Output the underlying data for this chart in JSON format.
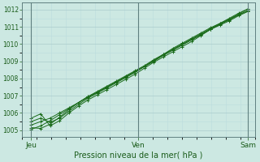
{
  "xlabel": "Pression niveau de la mer( hPa )",
  "xtick_labels": [
    "Jeu",
    "Ven",
    "Sam"
  ],
  "xtick_positions": [
    0.04,
    0.5,
    0.97
  ],
  "ylim": [
    1004.6,
    1012.4
  ],
  "yticks": [
    1005,
    1006,
    1007,
    1008,
    1009,
    1010,
    1011,
    1012
  ],
  "background_color": "#cce8e2",
  "grid_color_major": "#aacccc",
  "grid_color_minor": "#bbdddd",
  "line_color": "#1a6b1a",
  "marker_color": "#1a6b1a",
  "series": [
    [
      1005.3,
      1005.5,
      1005.7,
      1006.0,
      1006.3,
      1006.6,
      1006.9,
      1007.2,
      1007.5,
      1007.8,
      1008.1,
      1008.4,
      1008.7,
      1009.0,
      1009.35,
      1009.65,
      1009.95,
      1010.25,
      1010.55,
      1010.85,
      1011.15,
      1011.4,
      1011.7,
      1011.95
    ],
    [
      1005.05,
      1005.25,
      1005.55,
      1005.9,
      1006.25,
      1006.6,
      1006.95,
      1007.25,
      1007.55,
      1007.85,
      1008.15,
      1008.45,
      1008.75,
      1009.1,
      1009.4,
      1009.7,
      1010.0,
      1010.3,
      1010.6,
      1010.9,
      1011.2,
      1011.5,
      1011.8,
      1012.05
    ],
    [
      1005.15,
      1005.1,
      1005.35,
      1005.75,
      1006.2,
      1006.6,
      1006.95,
      1007.2,
      1007.5,
      1007.8,
      1008.1,
      1008.4,
      1008.7,
      1009.05,
      1009.4,
      1009.75,
      1010.05,
      1010.35,
      1010.65,
      1010.95,
      1011.2,
      1011.45,
      1011.75,
      1012.05
    ],
    [
      1005.5,
      1005.7,
      1005.45,
      1005.7,
      1006.1,
      1006.5,
      1006.85,
      1007.15,
      1007.45,
      1007.75,
      1008.05,
      1008.35,
      1008.7,
      1009.05,
      1009.35,
      1009.65,
      1009.95,
      1010.25,
      1010.55,
      1010.85,
      1011.15,
      1011.45,
      1011.7,
      1011.95
    ],
    [
      1005.7,
      1005.95,
      1005.25,
      1005.55,
      1006.0,
      1006.4,
      1006.75,
      1007.05,
      1007.35,
      1007.65,
      1007.95,
      1008.25,
      1008.6,
      1008.95,
      1009.25,
      1009.55,
      1009.85,
      1010.15,
      1010.5,
      1010.85,
      1011.1,
      1011.35,
      1011.65,
      1011.9
    ]
  ],
  "vline_x": [
    0.04,
    0.5,
    0.97
  ],
  "n_points": 24,
  "figsize": [
    3.2,
    2.0
  ],
  "dpi": 100
}
